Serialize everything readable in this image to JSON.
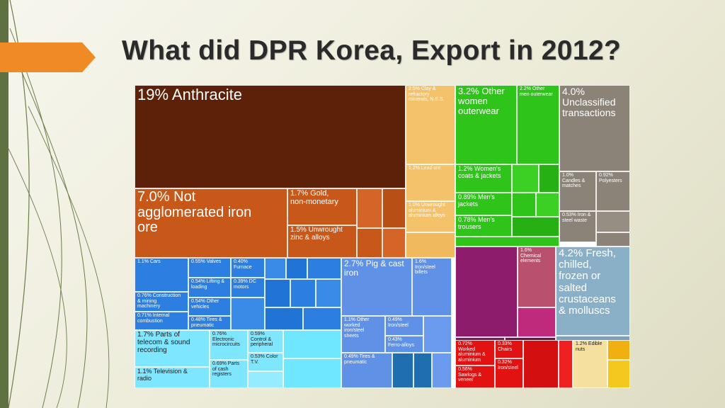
{
  "slide": {
    "title": "What did DPR Korea, Export in 2012?"
  },
  "colors": {
    "minerals": "#5c2108",
    "ores": "#c8581a",
    "stone": "#f5c26c",
    "textiles": "#2fc41a",
    "unclassified": "#8b8378",
    "chemicals": "#a8196f",
    "animals": "#8ab0c8",
    "metals": "#5f92e6",
    "machines": "#2c7fe0",
    "electronics": "#7fe6ff",
    "misc": "#e31212",
    "vegetables": "#f5e0a0"
  },
  "chart_data": {
    "type": "treemap",
    "title": "",
    "items": [
      {
        "label": "19% Anthracite",
        "value": 19
      },
      {
        "label": "7.0% Not agglomerated iron ore",
        "value": 7.0
      },
      {
        "label": "1.7% Gold, non-monetary",
        "value": 1.7
      },
      {
        "label": "1.5% Unwrought zinc & alloys",
        "value": 1.5
      },
      {
        "label": "2.5% Clay & refractory minerals, N.E.S.",
        "value": 2.5
      },
      {
        "label": "1.2% Lead ore",
        "value": 1.2
      },
      {
        "label": "1.0% Unwrought aluminium & aluminium alloys",
        "value": 1.0
      },
      {
        "label": "3.2% Other women outerwear",
        "value": 3.2
      },
      {
        "label": "2.2% Other men outerwear",
        "value": 2.2
      },
      {
        "label": "1.2% Women's coats & jackets",
        "value": 1.2
      },
      {
        "label": "0.89% Men's jackets",
        "value": 0.89
      },
      {
        "label": "0.78% Men's trousers",
        "value": 0.78
      },
      {
        "label": "4.0% Unclassified transactions",
        "value": 4.0
      },
      {
        "label": "1.0% Candles & matches",
        "value": 1.0
      },
      {
        "label": "0.92% Polyesters",
        "value": 0.92
      },
      {
        "label": "0.53% Iron & steel waste",
        "value": 0.53
      },
      {
        "label": "1.6% Chemical elements",
        "value": 1.6
      },
      {
        "label": "4.2% Fresh, chilled, frozen or salted crustaceans & molluscs",
        "value": 4.2
      },
      {
        "label": "1.1% Cars",
        "value": 1.1
      },
      {
        "label": "0.55% Valves",
        "value": 0.55
      },
      {
        "label": "0.40% Furnace",
        "value": 0.4
      },
      {
        "label": "0.54% Lifting & loading",
        "value": 0.54
      },
      {
        "label": "0.39% DC motors",
        "value": 0.39
      },
      {
        "label": "0.76% Construction & mining machinery",
        "value": 0.76
      },
      {
        "label": "0.54% Other vehicles",
        "value": 0.54
      },
      {
        "label": "0.71% Internal combustion",
        "value": 0.71
      },
      {
        "label": "0.48% Tires & pneumatic",
        "value": 0.48
      },
      {
        "label": "2.7% Pig & cast iron",
        "value": 2.7
      },
      {
        "label": "1.6% Iron/steel billets",
        "value": 1.6
      },
      {
        "label": "1.1% Other worked iron/steel sheets",
        "value": 1.1
      },
      {
        "label": "0.49% Iron/steel",
        "value": 0.49
      },
      {
        "label": "0.43% Ferro-alloys",
        "value": 0.43
      },
      {
        "label": "0.49% Tires & pneumatic",
        "value": 0.49
      },
      {
        "label": "1.7% Parts of telecom & sound recording",
        "value": 1.7
      },
      {
        "label": "1.1% Television & radio",
        "value": 1.1
      },
      {
        "label": "0.76% Electronic microcircuits",
        "value": 0.76
      },
      {
        "label": "0.69% Parts of cash registers",
        "value": 0.69
      },
      {
        "label": "0.59% Control & peripheral",
        "value": 0.59
      },
      {
        "label": "0.53% Color T.V.",
        "value": 0.53
      },
      {
        "label": "0.72% Worked aluminium & aluminium",
        "value": 0.72
      },
      {
        "label": "0.56% Sawlogs & veneer",
        "value": 0.56
      },
      {
        "label": "0.33% Chairs",
        "value": 0.33
      },
      {
        "label": "0.32% Iron/steel",
        "value": 0.32
      },
      {
        "label": "1.2% Edible nuts",
        "value": 1.2
      }
    ]
  }
}
